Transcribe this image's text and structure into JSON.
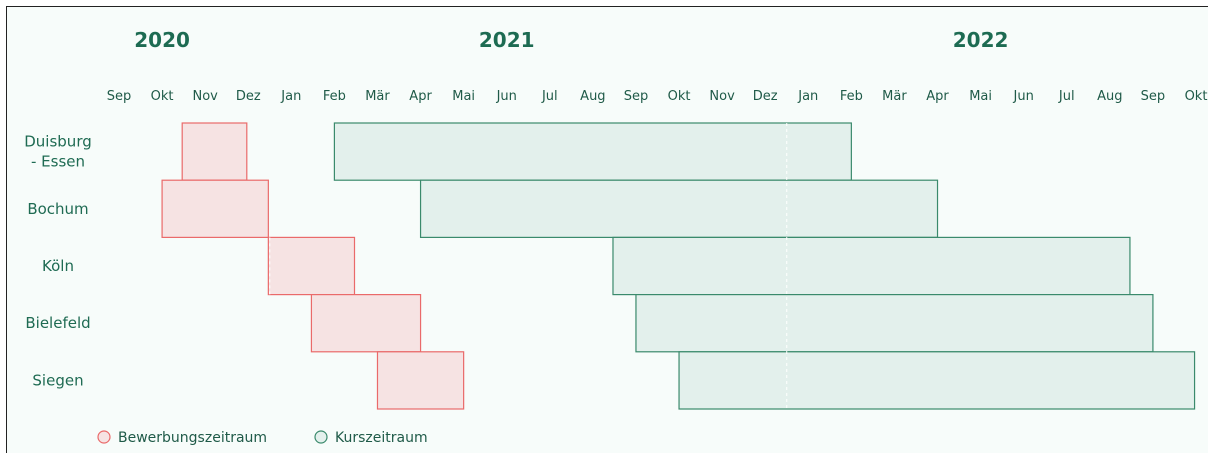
{
  "chart_data": {
    "type": "gantt",
    "years": [
      {
        "label": "2020",
        "center_month": "2020-10"
      },
      {
        "label": "2021",
        "center_month": "2021-06"
      },
      {
        "label": "2022",
        "center_month": "2022-05"
      }
    ],
    "months": [
      {
        "label": "Sep",
        "date": "2020-09"
      },
      {
        "label": "Okt",
        "date": "2020-10"
      },
      {
        "label": "Nov",
        "date": "2020-11"
      },
      {
        "label": "Dez",
        "date": "2020-12"
      },
      {
        "label": "Jan",
        "date": "2021-01"
      },
      {
        "label": "Feb",
        "date": "2021-02"
      },
      {
        "label": "Mär",
        "date": "2021-03"
      },
      {
        "label": "Apr",
        "date": "2021-04"
      },
      {
        "label": "Mai",
        "date": "2021-05"
      },
      {
        "label": "Jun",
        "date": "2021-06"
      },
      {
        "label": "Jul",
        "date": "2021-07"
      },
      {
        "label": "Aug",
        "date": "2021-08"
      },
      {
        "label": "Sep",
        "date": "2021-09"
      },
      {
        "label": "Okt",
        "date": "2021-10"
      },
      {
        "label": "Nov",
        "date": "2021-11"
      },
      {
        "label": "Dez",
        "date": "2021-12"
      },
      {
        "label": "Jan",
        "date": "2022-01"
      },
      {
        "label": "Feb",
        "date": "2022-02"
      },
      {
        "label": "Mär",
        "date": "2022-03"
      },
      {
        "label": "Apr",
        "date": "2022-04"
      },
      {
        "label": "Mai",
        "date": "2022-05"
      },
      {
        "label": "Jun",
        "date": "2022-06"
      },
      {
        "label": "Jul",
        "date": "2022-07"
      },
      {
        "label": "Aug",
        "date": "2022-08"
      },
      {
        "label": "Sep",
        "date": "2022-09"
      },
      {
        "label": "Okt",
        "date": "2022-10"
      }
    ],
    "rows": [
      {
        "label": "Duisburg\n- Essen",
        "bewerbung": [
          "2020-10-15",
          "2020-11-30"
        ],
        "kurs": [
          "2021-02-01",
          "2022-01-31"
        ]
      },
      {
        "label": "Bochum",
        "bewerbung": [
          "2020-10-01",
          "2020-12-15"
        ],
        "kurs": [
          "2021-04-01",
          "2022-03-31"
        ]
      },
      {
        "label": "Köln",
        "bewerbung": [
          "2020-12-15",
          "2021-02-15"
        ],
        "kurs": [
          "2021-08-15",
          "2022-08-15"
        ]
      },
      {
        "label": "Bielefeld",
        "bewerbung": [
          "2021-01-15",
          "2021-03-31"
        ],
        "kurs": [
          "2021-09-01",
          "2022-08-31"
        ]
      },
      {
        "label": "Siegen",
        "bewerbung": [
          "2021-03-01",
          "2021-05-01"
        ],
        "kurs": [
          "2021-10-01",
          "2022-09-30"
        ]
      }
    ],
    "legend": {
      "bewerbung": "Bewerbungszeitraum",
      "kurs": "Kurszeitraum"
    },
    "colors": {
      "bewerbung_fill": "#f6e3e3",
      "bewerbung_stroke": "#ea6a6a",
      "kurs_fill": "#e3f0ec",
      "kurs_stroke": "#3a8a6c",
      "year_label": "#1d6b52",
      "text": "#1f5a48",
      "background": "#f7fcfa"
    },
    "dashed_separator": "2022-01"
  }
}
